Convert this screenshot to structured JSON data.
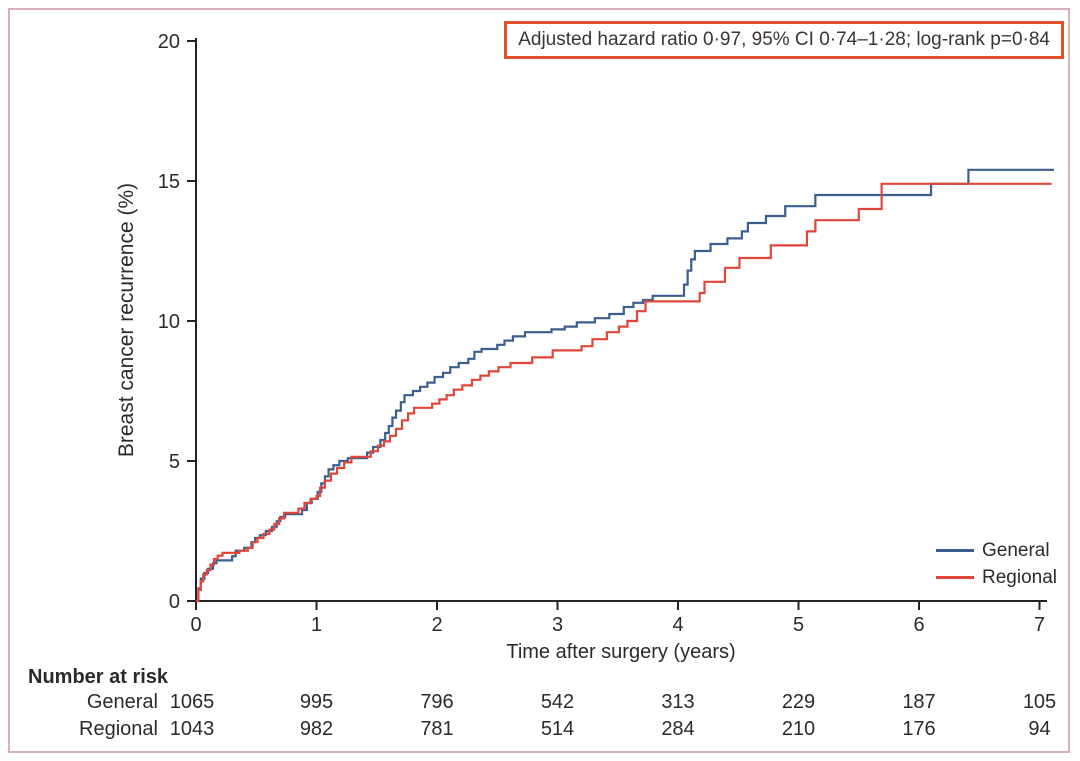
{
  "figure": {
    "kind": "kaplan-meier-cumulative-incidence-figure"
  },
  "chart_data": {
    "type": "line",
    "subtype": "step-kaplan-meier",
    "title": "",
    "xlabel": "Time after surgery (years)",
    "ylabel": "Breast cancer recurrence (%)",
    "xlim": [
      0,
      7.15
    ],
    "ylim": [
      0,
      20
    ],
    "x_ticks": [
      0,
      1,
      2,
      3,
      4,
      5,
      6,
      7
    ],
    "y_ticks": [
      0,
      5,
      10,
      15,
      20
    ],
    "grid": false,
    "legend_position": "lower right",
    "annotation": "Adjusted hazard ratio 0·97, 95% CI 0·74–1·28; log-rank p=0·84",
    "colors": {
      "axis": "#272223",
      "text": "#2e2a2b",
      "annotation_border": "#e3502d",
      "outer_border": "#d8b0bd",
      "general": "#3a5f8e",
      "regional": "#e0473a"
    },
    "series": [
      {
        "name": "General",
        "color": "#3a5f8e",
        "steps": [
          [
            0.0,
            0.0
          ],
          [
            0.02,
            0.45
          ],
          [
            0.04,
            0.8
          ],
          [
            0.07,
            1.0
          ],
          [
            0.1,
            1.15
          ],
          [
            0.14,
            1.35
          ],
          [
            0.17,
            1.45
          ],
          [
            0.3,
            1.6
          ],
          [
            0.33,
            1.8
          ],
          [
            0.4,
            1.9
          ],
          [
            0.46,
            2.1
          ],
          [
            0.49,
            2.25
          ],
          [
            0.53,
            2.35
          ],
          [
            0.58,
            2.5
          ],
          [
            0.63,
            2.65
          ],
          [
            0.67,
            2.85
          ],
          [
            0.7,
            3.0
          ],
          [
            0.74,
            3.1
          ],
          [
            0.88,
            3.25
          ],
          [
            0.92,
            3.5
          ],
          [
            0.96,
            3.65
          ],
          [
            1.01,
            3.9
          ],
          [
            1.04,
            4.2
          ],
          [
            1.07,
            4.45
          ],
          [
            1.1,
            4.7
          ],
          [
            1.14,
            4.85
          ],
          [
            1.19,
            5.0
          ],
          [
            1.26,
            5.1
          ],
          [
            1.42,
            5.3
          ],
          [
            1.47,
            5.5
          ],
          [
            1.53,
            5.75
          ],
          [
            1.57,
            6.0
          ],
          [
            1.6,
            6.25
          ],
          [
            1.63,
            6.55
          ],
          [
            1.66,
            6.8
          ],
          [
            1.7,
            7.1
          ],
          [
            1.73,
            7.35
          ],
          [
            1.8,
            7.5
          ],
          [
            1.86,
            7.65
          ],
          [
            1.92,
            7.8
          ],
          [
            1.98,
            8.0
          ],
          [
            2.05,
            8.15
          ],
          [
            2.11,
            8.35
          ],
          [
            2.18,
            8.5
          ],
          [
            2.26,
            8.65
          ],
          [
            2.31,
            8.9
          ],
          [
            2.37,
            9.0
          ],
          [
            2.5,
            9.15
          ],
          [
            2.56,
            9.3
          ],
          [
            2.63,
            9.45
          ],
          [
            2.73,
            9.6
          ],
          [
            2.95,
            9.7
          ],
          [
            3.06,
            9.8
          ],
          [
            3.16,
            9.95
          ],
          [
            3.31,
            10.1
          ],
          [
            3.43,
            10.25
          ],
          [
            3.55,
            10.5
          ],
          [
            3.63,
            10.65
          ],
          [
            3.71,
            10.75
          ],
          [
            3.79,
            10.9
          ],
          [
            4.05,
            11.3
          ],
          [
            4.08,
            11.8
          ],
          [
            4.11,
            12.2
          ],
          [
            4.14,
            12.5
          ],
          [
            4.27,
            12.75
          ],
          [
            4.41,
            12.95
          ],
          [
            4.53,
            13.2
          ],
          [
            4.58,
            13.5
          ],
          [
            4.73,
            13.75
          ],
          [
            4.89,
            14.1
          ],
          [
            5.14,
            14.5
          ],
          [
            6.1,
            14.9
          ],
          [
            6.41,
            15.4
          ],
          [
            7.12,
            15.4
          ]
        ]
      },
      {
        "name": "Regional",
        "color": "#e0473a",
        "steps": [
          [
            0.0,
            0.0
          ],
          [
            0.02,
            0.4
          ],
          [
            0.04,
            0.7
          ],
          [
            0.06,
            0.95
          ],
          [
            0.09,
            1.1
          ],
          [
            0.12,
            1.3
          ],
          [
            0.15,
            1.5
          ],
          [
            0.18,
            1.62
          ],
          [
            0.22,
            1.72
          ],
          [
            0.36,
            1.8
          ],
          [
            0.43,
            1.9
          ],
          [
            0.47,
            2.1
          ],
          [
            0.51,
            2.25
          ],
          [
            0.56,
            2.4
          ],
          [
            0.61,
            2.55
          ],
          [
            0.65,
            2.75
          ],
          [
            0.69,
            2.95
          ],
          [
            0.73,
            3.15
          ],
          [
            0.85,
            3.3
          ],
          [
            0.9,
            3.5
          ],
          [
            0.95,
            3.65
          ],
          [
            1.0,
            3.75
          ],
          [
            1.03,
            4.05
          ],
          [
            1.07,
            4.3
          ],
          [
            1.12,
            4.55
          ],
          [
            1.17,
            4.75
          ],
          [
            1.23,
            4.95
          ],
          [
            1.29,
            5.15
          ],
          [
            1.45,
            5.35
          ],
          [
            1.51,
            5.55
          ],
          [
            1.56,
            5.7
          ],
          [
            1.61,
            5.9
          ],
          [
            1.66,
            6.15
          ],
          [
            1.71,
            6.45
          ],
          [
            1.76,
            6.7
          ],
          [
            1.81,
            6.9
          ],
          [
            1.96,
            7.05
          ],
          [
            2.02,
            7.2
          ],
          [
            2.08,
            7.35
          ],
          [
            2.14,
            7.55
          ],
          [
            2.21,
            7.7
          ],
          [
            2.29,
            7.9
          ],
          [
            2.36,
            8.05
          ],
          [
            2.43,
            8.2
          ],
          [
            2.51,
            8.35
          ],
          [
            2.61,
            8.5
          ],
          [
            2.79,
            8.7
          ],
          [
            2.96,
            8.95
          ],
          [
            3.2,
            9.1
          ],
          [
            3.29,
            9.35
          ],
          [
            3.41,
            9.6
          ],
          [
            3.51,
            9.8
          ],
          [
            3.58,
            10.0
          ],
          [
            3.66,
            10.35
          ],
          [
            3.73,
            10.7
          ],
          [
            4.18,
            11.0
          ],
          [
            4.22,
            11.4
          ],
          [
            4.39,
            11.9
          ],
          [
            4.51,
            12.25
          ],
          [
            4.77,
            12.7
          ],
          [
            5.07,
            13.2
          ],
          [
            5.14,
            13.6
          ],
          [
            5.5,
            14.0
          ],
          [
            5.69,
            14.9
          ],
          [
            7.1,
            14.9
          ]
        ]
      }
    ]
  },
  "risk_table": {
    "title": "Number at risk",
    "times": [
      0,
      1,
      2,
      3,
      4,
      5,
      6,
      7
    ],
    "rows": [
      {
        "label": "General",
        "values": [
          1065,
          995,
          796,
          542,
          313,
          229,
          187,
          105
        ]
      },
      {
        "label": "Regional",
        "values": [
          1043,
          982,
          781,
          514,
          284,
          210,
          176,
          94
        ]
      }
    ]
  }
}
